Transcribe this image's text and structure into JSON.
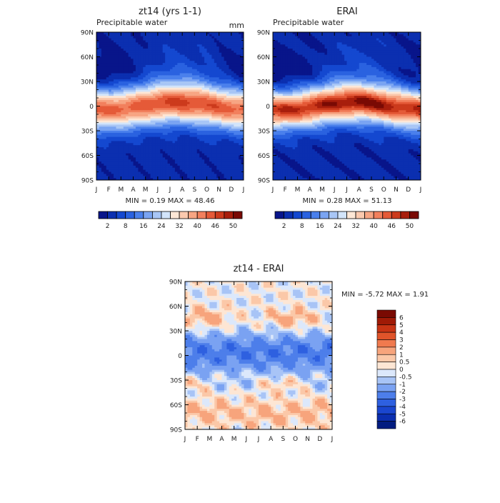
{
  "months": [
    "J",
    "F",
    "M",
    "A",
    "M",
    "J",
    "J",
    "A",
    "S",
    "O",
    "N",
    "D",
    "J"
  ],
  "lat_labels": [
    "90N",
    "60N",
    "30N",
    "0",
    "30S",
    "60S",
    "90S"
  ],
  "colors": {
    "pw": [
      "#08158a",
      "#0b2fb0",
      "#1448d0",
      "#2a62e0",
      "#4a80ec",
      "#7aa4f2",
      "#a8c6f6",
      "#d2e4fa",
      "#fde7d6",
      "#fbc9ae",
      "#f7a583",
      "#f2805d",
      "#e55a38",
      "#cc3a1c",
      "#a81e0c",
      "#7a0a04"
    ],
    "diff": [
      "#021c80",
      "#0b2eaf",
      "#1a46cf",
      "#2e60e0",
      "#4d7eea",
      "#7aa2f2",
      "#a8c4f6",
      "#dce8fb",
      "#fde6d4",
      "#fbc8a8",
      "#f7a47c",
      "#f07a4e",
      "#e0542a",
      "#c83414",
      "#a01a06",
      "#7a0a02"
    ]
  },
  "panels": [
    {
      "title": "zt14 (yrs 1-1)",
      "subtitle": "Precipitable water",
      "units": "mm",
      "stats": "MIN =   0.19 MAX =  48.46"
    },
    {
      "title": "ERAI",
      "subtitle": "Precipitable water",
      "units": "",
      "stats": "MIN =   0.28 MAX =  51.13"
    }
  ],
  "colorbar_pw_labels": [
    "2",
    "8",
    "16",
    "24",
    "32",
    "40",
    "46",
    "50"
  ],
  "diff_panel": {
    "title": "zt14 - ERAI",
    "stats": "MIN =  -5.72 MAX =   1.91",
    "colorbar_labels": [
      "6",
      "5",
      "4",
      "3",
      "2",
      "1",
      "0.5",
      "0",
      "-0.5",
      "-1",
      "-2",
      "-3",
      "-4",
      "-5",
      "-6"
    ]
  },
  "chart_data": [
    {
      "type": "heatmap",
      "title": "zt14 (yrs 1-1)",
      "subtitle": "Precipitable water",
      "units": "mm",
      "x": [
        "J",
        "F",
        "M",
        "A",
        "M",
        "J",
        "J",
        "A",
        "S",
        "O",
        "N",
        "D",
        "J"
      ],
      "y": [
        "90N",
        "60N",
        "30N",
        "0",
        "30S",
        "60S",
        "90S"
      ],
      "ylim": [
        -90,
        90
      ],
      "min": 0.19,
      "max": 48.46,
      "levels": [
        2,
        5,
        8,
        12,
        16,
        20,
        24,
        28,
        32,
        36,
        40,
        43,
        46,
        48,
        50
      ]
    },
    {
      "type": "heatmap",
      "title": "ERAI",
      "subtitle": "Precipitable water",
      "x": [
        "J",
        "F",
        "M",
        "A",
        "M",
        "J",
        "J",
        "A",
        "S",
        "O",
        "N",
        "D",
        "J"
      ],
      "y": [
        "90N",
        "60N",
        "30N",
        "0",
        "30S",
        "60S",
        "90S"
      ],
      "ylim": [
        -90,
        90
      ],
      "min": 0.28,
      "max": 51.13,
      "levels": [
        2,
        5,
        8,
        12,
        16,
        20,
        24,
        28,
        32,
        36,
        40,
        43,
        46,
        48,
        50
      ]
    },
    {
      "type": "heatmap",
      "title": "zt14 - ERAI",
      "x": [
        "J",
        "F",
        "M",
        "A",
        "M",
        "J",
        "J",
        "A",
        "S",
        "O",
        "N",
        "D",
        "J"
      ],
      "y": [
        "90N",
        "60N",
        "30N",
        "0",
        "30S",
        "60S",
        "90S"
      ],
      "ylim": [
        -90,
        90
      ],
      "min": -5.72,
      "max": 1.91,
      "levels": [
        -6,
        -5,
        -4,
        -3,
        -2,
        -1,
        -0.5,
        0,
        0.5,
        1,
        2,
        3,
        4,
        5,
        6
      ]
    }
  ]
}
